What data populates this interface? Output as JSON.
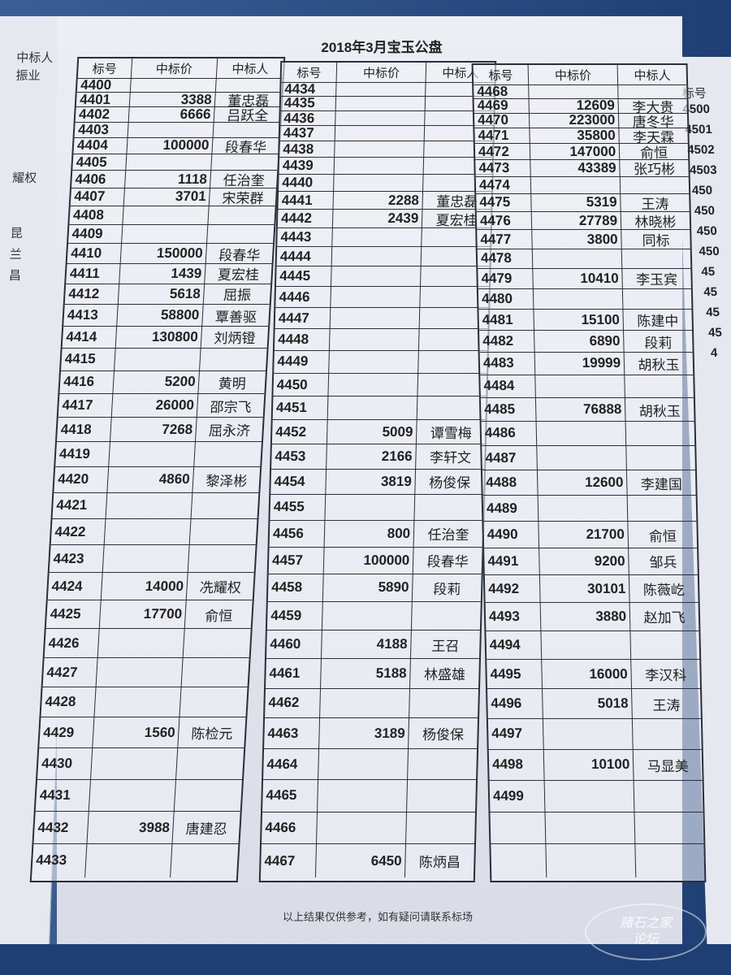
{
  "title": "2018年3月宝玉公盘",
  "footer": "以上结果仅供参考，如有疑问请联系标场",
  "watermark": {
    "line1": "赌石之家",
    "line2": "论坛"
  },
  "headers": {
    "id": "标号",
    "price": "中标价",
    "name": "中标人"
  },
  "left_fragments": [
    "中标人",
    "振业",
    "耀权",
    "昆",
    "兰",
    "昌"
  ],
  "right_fragments": {
    "header": "标号",
    "ids": [
      "4500",
      "4501",
      "4502",
      "4503",
      "450",
      "450",
      "450",
      "450",
      "45",
      "45",
      "45",
      "45",
      "4"
    ]
  },
  "tables": [
    {
      "rows": [
        [
          "4400",
          "",
          ""
        ],
        [
          "4401",
          "3388",
          "董忠磊"
        ],
        [
          "4402",
          "6666",
          "吕跃全"
        ],
        [
          "4403",
          "",
          ""
        ],
        [
          "4404",
          "100000",
          "段春华"
        ],
        [
          "4405",
          "",
          ""
        ],
        [
          "4406",
          "1118",
          "任治奎"
        ],
        [
          "4407",
          "3701",
          "宋荣群"
        ],
        [
          "4408",
          "",
          ""
        ],
        [
          "4409",
          "",
          ""
        ],
        [
          "4410",
          "150000",
          "段春华"
        ],
        [
          "4411",
          "1439",
          "夏宏桂"
        ],
        [
          "4412",
          "5618",
          "屈振"
        ],
        [
          "4413",
          "58800",
          "覃善驱"
        ],
        [
          "4414",
          "130800",
          "刘炳镫"
        ],
        [
          "4415",
          "",
          ""
        ],
        [
          "4416",
          "5200",
          "黄明"
        ],
        [
          "4417",
          "26000",
          "邵宗飞"
        ],
        [
          "4418",
          "7268",
          "屈永济"
        ],
        [
          "4419",
          "",
          ""
        ],
        [
          "4420",
          "4860",
          "黎泽彬"
        ],
        [
          "4421",
          "",
          ""
        ],
        [
          "4422",
          "",
          ""
        ],
        [
          "4423",
          "",
          ""
        ],
        [
          "4424",
          "14000",
          "冼耀权"
        ],
        [
          "4425",
          "17700",
          "俞恒"
        ],
        [
          "4426",
          "",
          ""
        ],
        [
          "4427",
          "",
          ""
        ],
        [
          "4428",
          "",
          ""
        ],
        [
          "4429",
          "1560",
          "陈检元"
        ],
        [
          "4430",
          "",
          ""
        ],
        [
          "4431",
          "",
          ""
        ],
        [
          "4432",
          "3988",
          "唐建忍"
        ],
        [
          "4433",
          "",
          ""
        ]
      ]
    },
    {
      "rows": [
        [
          "4434",
          "",
          ""
        ],
        [
          "4435",
          "",
          ""
        ],
        [
          "4436",
          "",
          ""
        ],
        [
          "4437",
          "",
          ""
        ],
        [
          "4438",
          "",
          ""
        ],
        [
          "4439",
          "",
          ""
        ],
        [
          "4440",
          "",
          ""
        ],
        [
          "4441",
          "2288",
          "董忠磊"
        ],
        [
          "4442",
          "2439",
          "夏宏桂"
        ],
        [
          "4443",
          "",
          ""
        ],
        [
          "4444",
          "",
          ""
        ],
        [
          "4445",
          "",
          ""
        ],
        [
          "4446",
          "",
          ""
        ],
        [
          "4447",
          "",
          ""
        ],
        [
          "4448",
          "",
          ""
        ],
        [
          "4449",
          "",
          ""
        ],
        [
          "4450",
          "",
          ""
        ],
        [
          "4451",
          "",
          ""
        ],
        [
          "4452",
          "5009",
          "谭雪梅"
        ],
        [
          "4453",
          "2166",
          "李轩文"
        ],
        [
          "4454",
          "3819",
          "杨俊保"
        ],
        [
          "4455",
          "",
          ""
        ],
        [
          "4456",
          "800",
          "任治奎"
        ],
        [
          "4457",
          "100000",
          "段春华"
        ],
        [
          "4458",
          "5890",
          "段莉"
        ],
        [
          "4459",
          "",
          ""
        ],
        [
          "4460",
          "4188",
          "王召"
        ],
        [
          "4461",
          "5188",
          "林盛雄"
        ],
        [
          "4462",
          "",
          ""
        ],
        [
          "4463",
          "3189",
          "杨俊保"
        ],
        [
          "4464",
          "",
          ""
        ],
        [
          "4465",
          "",
          ""
        ],
        [
          "4466",
          "",
          ""
        ],
        [
          "4467",
          "6450",
          "陈炳昌"
        ]
      ]
    },
    {
      "rows": [
        [
          "4468",
          "",
          ""
        ],
        [
          "4469",
          "12609",
          "李大贵"
        ],
        [
          "4470",
          "223000",
          "唐冬华"
        ],
        [
          "4471",
          "35800",
          "李天霖"
        ],
        [
          "4472",
          "147000",
          "俞恒"
        ],
        [
          "4473",
          "43389",
          "张巧彬"
        ],
        [
          "4474",
          "",
          ""
        ],
        [
          "4475",
          "5319",
          "王涛"
        ],
        [
          "4476",
          "27789",
          "林晓彬"
        ],
        [
          "4477",
          "3800",
          "同标"
        ],
        [
          "4478",
          "",
          ""
        ],
        [
          "4479",
          "10410",
          "李玉宾"
        ],
        [
          "4480",
          "",
          ""
        ],
        [
          "4481",
          "15100",
          "陈建中"
        ],
        [
          "4482",
          "6890",
          "段莉"
        ],
        [
          "4483",
          "19999",
          "胡秋玉"
        ],
        [
          "4484",
          "",
          ""
        ],
        [
          "4485",
          "76888",
          "胡秋玉"
        ],
        [
          "4486",
          "",
          ""
        ],
        [
          "4487",
          "",
          ""
        ],
        [
          "4488",
          "12600",
          "李建国"
        ],
        [
          "4489",
          "",
          ""
        ],
        [
          "4490",
          "21700",
          "俞恒"
        ],
        [
          "4491",
          "9200",
          "邹兵"
        ],
        [
          "4492",
          "30101",
          "陈薇屹"
        ],
        [
          "4493",
          "3880",
          "赵加飞"
        ],
        [
          "4494",
          "",
          ""
        ],
        [
          "4495",
          "16000",
          "李汉科"
        ],
        [
          "4496",
          "5018",
          "王涛"
        ],
        [
          "4497",
          "",
          ""
        ],
        [
          "4498",
          "10100",
          "马显美"
        ],
        [
          "4499",
          "",
          ""
        ],
        [
          "",
          "",
          ""
        ],
        [
          "",
          "",
          ""
        ]
      ]
    }
  ]
}
